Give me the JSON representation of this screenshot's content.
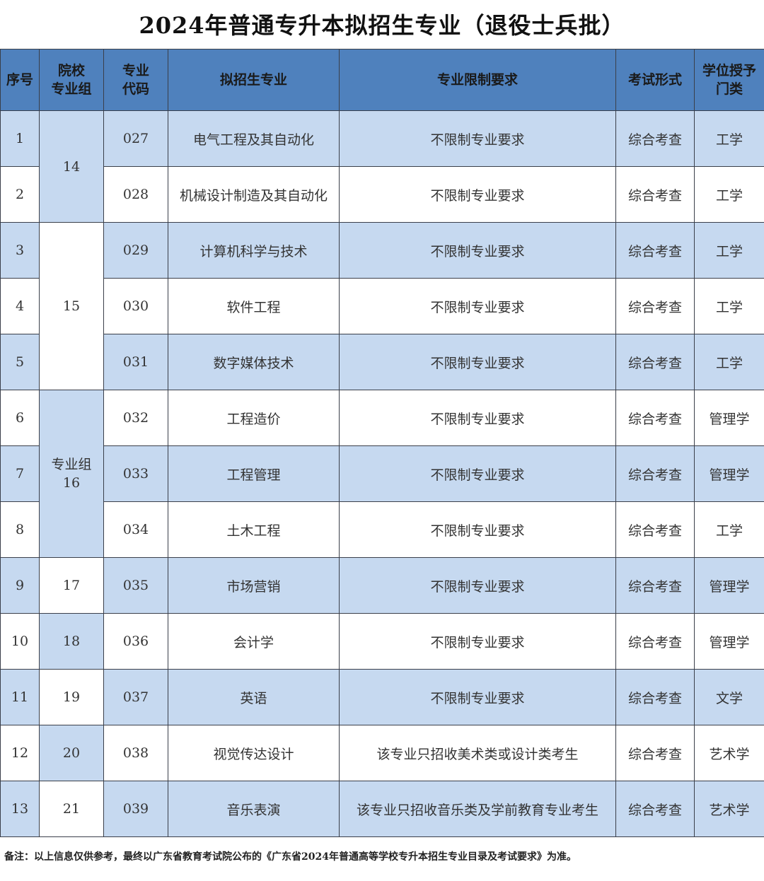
{
  "title": "2024年普通专升本拟招生专业（退役士兵批）",
  "headers": [
    "序号",
    "院校\n专业组",
    "专业\n代码",
    "拟招生专业",
    "专业限制要求",
    "考试形式",
    "学位授予\n门类"
  ],
  "groups": [
    {
      "label": "14",
      "rows": 2
    },
    {
      "label": "15",
      "rows": 3
    },
    {
      "label": "专业组\n16",
      "rows": 3
    },
    {
      "label": "17",
      "rows": 1
    },
    {
      "label": "18",
      "rows": 1
    },
    {
      "label": "19",
      "rows": 1
    },
    {
      "label": "20",
      "rows": 1
    },
    {
      "label": "21",
      "rows": 1
    }
  ],
  "rows": [
    {
      "no": "1",
      "code": "027",
      "major": "电气工程及其自动化",
      "req": "不限制专业要求",
      "exam": "综合考查",
      "degree": "工学"
    },
    {
      "no": "2",
      "code": "028",
      "major": "机械设计制造及其自动化",
      "req": "不限制专业要求",
      "exam": "综合考查",
      "degree": "工学"
    },
    {
      "no": "3",
      "code": "029",
      "major": "计算机科学与技术",
      "req": "不限制专业要求",
      "exam": "综合考查",
      "degree": "工学"
    },
    {
      "no": "4",
      "code": "030",
      "major": "软件工程",
      "req": "不限制专业要求",
      "exam": "综合考查",
      "degree": "工学"
    },
    {
      "no": "5",
      "code": "031",
      "major": "数字媒体技术",
      "req": "不限制专业要求",
      "exam": "综合考查",
      "degree": "工学"
    },
    {
      "no": "6",
      "code": "032",
      "major": "工程造价",
      "req": "不限制专业要求",
      "exam": "综合考查",
      "degree": "管理学"
    },
    {
      "no": "7",
      "code": "033",
      "major": "工程管理",
      "req": "不限制专业要求",
      "exam": "综合考查",
      "degree": "管理学"
    },
    {
      "no": "8",
      "code": "034",
      "major": "土木工程",
      "req": "不限制专业要求",
      "exam": "综合考查",
      "degree": "工学"
    },
    {
      "no": "9",
      "code": "035",
      "major": "市场营销",
      "req": "不限制专业要求",
      "exam": "综合考查",
      "degree": "管理学"
    },
    {
      "no": "10",
      "code": "036",
      "major": "会计学",
      "req": "不限制专业要求",
      "exam": "综合考查",
      "degree": "管理学"
    },
    {
      "no": "11",
      "code": "037",
      "major": "英语",
      "req": "不限制专业要求",
      "exam": "综合考查",
      "degree": "文学"
    },
    {
      "no": "12",
      "code": "038",
      "major": "视觉传达设计",
      "req": "该专业只招收美术类或设计类考生",
      "exam": "综合考查",
      "degree": "艺术学"
    },
    {
      "no": "13",
      "code": "039",
      "major": "音乐表演",
      "req": "该专业只招收音乐类及学前教育专业考生",
      "exam": "综合考查",
      "degree": "艺术学"
    }
  ],
  "note": "备注：以上信息仅供参考，最终以广东省教育考试院公布的《广东省2024年普通高等学校专升本招生专业目录及考试要求》为准。",
  "colors": {
    "header": "#4f81bd",
    "shade": "#c6d9f0",
    "border": "#3a3f4a"
  }
}
